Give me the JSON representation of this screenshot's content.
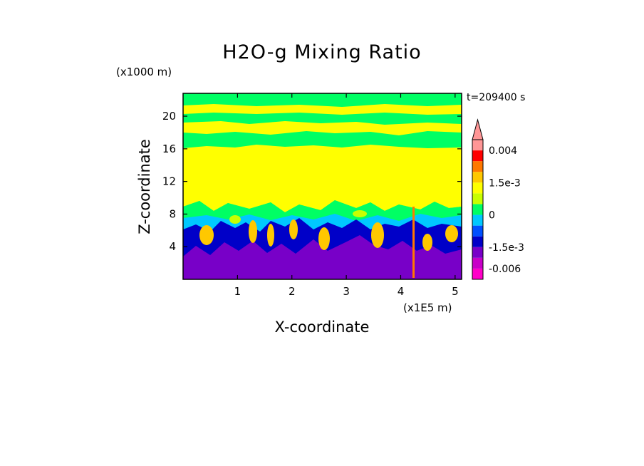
{
  "chart_data": {
    "type": "heatmap",
    "title": "H2O-g Mixing Ratio",
    "xlabel": "X-coordinate",
    "ylabel": "Z-coordinate",
    "x_unit_label": "(x1E5 m)",
    "y_unit_label": "(x1000 m)",
    "time_label": "t=209400 s",
    "xlim": [
      0,
      5.12
    ],
    "ylim": [
      0,
      22.8
    ],
    "x_ticks": [
      "1",
      "2",
      "3",
      "4",
      "5"
    ],
    "y_ticks": [
      "4",
      "8",
      "12",
      "16",
      "20"
    ],
    "colorbar": {
      "levels": [
        -0.009,
        -0.006,
        -0.003,
        -0.0015,
        -0.001,
        -0.0005,
        0,
        0.0005,
        0.001,
        0.0015,
        0.002,
        0.003,
        0.004
      ],
      "colors": [
        "#ff00c8",
        "#c800c8",
        "#7800c8",
        "#0000c8",
        "#0050ff",
        "#00c8ff",
        "#00ff64",
        "#c8ff00",
        "#ffff00",
        "#ffc800",
        "#ff7800",
        "#ff0000",
        "#ff9696"
      ],
      "tick_labels": [
        "0.004",
        "1.5e-3",
        "0",
        "-1.5e-3",
        "-0.006"
      ]
    }
  },
  "colors": {
    "green": "#00ff64",
    "yellow": "#ffff00",
    "cyan": "#00c8ff",
    "blue": "#0000c8",
    "purple": "#7800c8",
    "orange": "#ffc800",
    "light_green": "#c8ff00"
  }
}
